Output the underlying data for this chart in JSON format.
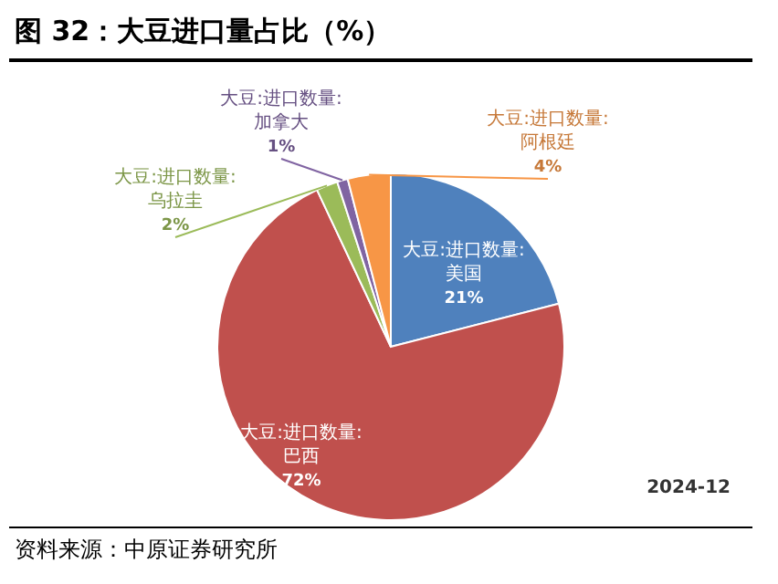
{
  "chart_data": {
    "type": "pie",
    "title": "图 32：大豆进口量占比（%）",
    "categories": [
      "大豆:进口数量:美国",
      "大豆:进口数量:巴西",
      "大豆:进口数量:乌拉圭",
      "大豆:进口数量:加拿大",
      "大豆:进口数量:阿根廷"
    ],
    "values": [
      21,
      72,
      2,
      1,
      4
    ],
    "colors": [
      "#4f81bd",
      "#c0504d",
      "#9bbb59",
      "#8064a2",
      "#f79646"
    ],
    "value_labels": [
      "21%",
      "72%",
      "2%",
      "1%",
      "4%"
    ],
    "annotations": [
      "2024-12",
      "资料来源：中原证券研究所"
    ]
  }
}
